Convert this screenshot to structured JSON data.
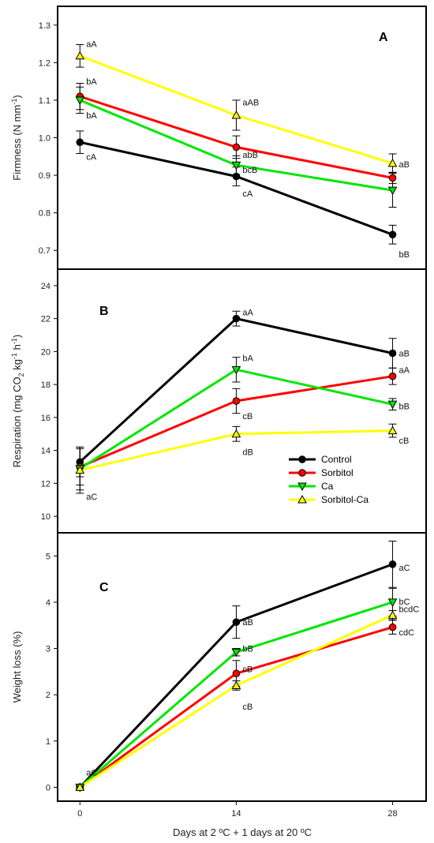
{
  "chart_data": {
    "type": "line",
    "x": [
      0,
      14,
      28
    ],
    "xlabel": "Days at 2 ºC + 1 days at 20 ºC",
    "xticks": [
      "0",
      "14",
      "28"
    ],
    "xlim": [
      -2,
      31
    ],
    "legend": {
      "placement": "inside panel B, lower-right",
      "entries": [
        "Control",
        "Sorbitol",
        "Ca",
        "Sorbitol-Ca"
      ]
    },
    "series_style": [
      {
        "name": "Control",
        "color": "#000000",
        "marker": "circle"
      },
      {
        "name": "Sorbitol",
        "color": "#ff0000",
        "marker": "circle"
      },
      {
        "name": "Ca",
        "color": "#00e600",
        "marker": "triangle-down"
      },
      {
        "name": "Sorbitol-Ca",
        "color": "#ffff00",
        "marker": "triangle-up"
      }
    ],
    "panels": [
      {
        "label": "A",
        "ylabel": "Firmness (N mm",
        "ylabel_sup": "-1",
        "ylabel_end": ")",
        "ylim": [
          0.65,
          1.35
        ],
        "yticks": [
          0.7,
          0.8,
          0.9,
          1.0,
          1.1,
          1.2,
          1.3
        ],
        "ytick_labels": [
          "0.7",
          "0.8",
          "0.9",
          "1.0",
          "1.1",
          "1.2",
          "1.3"
        ],
        "series": [
          {
            "name": "Control",
            "values": [
              0.988,
              0.897,
              0.742
            ],
            "errors": [
              0.03,
              0.025,
              0.025
            ]
          },
          {
            "name": "Sorbitol",
            "values": [
              1.11,
              0.975,
              0.893
            ],
            "errors": [
              0.035,
              0.03,
              0.015
            ]
          },
          {
            "name": "Ca",
            "values": [
              1.1,
              0.927,
              0.86
            ],
            "errors": [
              0.035,
              0.025,
              0.045
            ]
          },
          {
            "name": "Sorbitol-Ca",
            "values": [
              1.218,
              1.06,
              0.932
            ],
            "errors": [
              0.03,
              0.04,
              0.025
            ]
          }
        ],
        "annotations": [
          {
            "text": "aA",
            "x": 0,
            "y": 1.25
          },
          {
            "text": "bA",
            "x": 0,
            "y": 1.15
          },
          {
            "text": "bA",
            "x": 0,
            "y": 1.06
          },
          {
            "text": "cA",
            "x": 0,
            "y": 0.95
          },
          {
            "text": "aAB",
            "x": 14,
            "y": 1.095
          },
          {
            "text": "abB",
            "x": 14,
            "y": 0.955
          },
          {
            "text": "bcB",
            "x": 14,
            "y": 0.915
          },
          {
            "text": "cA",
            "x": 14,
            "y": 0.852
          },
          {
            "text": "aB",
            "x": 28,
            "y": 0.93
          },
          {
            "text": "bB",
            "x": 28,
            "y": 0.69
          }
        ]
      },
      {
        "label": "B",
        "ylabel": "Respiration (mg CO",
        "ylabel_sub": "2",
        "ylabel_mid": " kg",
        "ylabel_sup1": "-1",
        "ylabel_mid2": " h",
        "ylabel_sup2": "-1",
        "ylabel_end": ")",
        "ylim": [
          9,
          25
        ],
        "yticks": [
          10,
          12,
          14,
          16,
          18,
          20,
          22,
          24
        ],
        "ytick_labels": [
          "10",
          "12",
          "14",
          "16",
          "18",
          "20",
          "22",
          "24"
        ],
        "series": [
          {
            "name": "Control",
            "values": [
              13.3,
              22.0,
              19.9
            ],
            "errors": [
              0.9,
              0.45,
              0.9
            ]
          },
          {
            "name": "Sorbitol",
            "values": [
              13.0,
              17.0,
              18.5
            ],
            "errors": [
              1.1,
              0.75,
              0.5
            ]
          },
          {
            "name": "Ca",
            "values": [
              12.9,
              18.9,
              16.8
            ],
            "errors": [
              1.3,
              0.75,
              0.35
            ]
          },
          {
            "name": "Sorbitol-Ca",
            "values": [
              12.8,
              15.0,
              15.2
            ],
            "errors": [
              1.4,
              0.45,
              0.4
            ]
          }
        ],
        "annotations": [
          {
            "text": "aC",
            "x": 0,
            "y": 11.2
          },
          {
            "text": "aA",
            "x": 14,
            "y": 22.4
          },
          {
            "text": "bA",
            "x": 14,
            "y": 19.6
          },
          {
            "text": "cB",
            "x": 14,
            "y": 16.1
          },
          {
            "text": "dB",
            "x": 14,
            "y": 13.9
          },
          {
            "text": "aB",
            "x": 28,
            "y": 19.9
          },
          {
            "text": "aA",
            "x": 28,
            "y": 18.9
          },
          {
            "text": "bB",
            "x": 28,
            "y": 16.7
          },
          {
            "text": "cB",
            "x": 28,
            "y": 14.6
          }
        ]
      },
      {
        "label": "C",
        "ylabel": "Weight loss (%)",
        "ylim": [
          -0.3,
          5.5
        ],
        "yticks": [
          0,
          1,
          2,
          3,
          4,
          5
        ],
        "ytick_labels": [
          "0",
          "1",
          "2",
          "3",
          "4",
          "5"
        ],
        "series": [
          {
            "name": "Control",
            "values": [
              0,
              3.57,
              4.82
            ],
            "errors": [
              0.03,
              0.35,
              0.5
            ]
          },
          {
            "name": "Sorbitol",
            "values": [
              0,
              2.46,
              3.46
            ],
            "errors": [
              0.03,
              0.28,
              0.15
            ]
          },
          {
            "name": "Ca",
            "values": [
              0,
              2.92,
              4.0
            ],
            "errors": [
              0.03,
              0.08,
              0.3
            ]
          },
          {
            "name": "Sorbitol-Ca",
            "values": [
              0,
              2.2,
              3.72
            ],
            "errors": [
              0.03,
              0.1,
              0.1
            ]
          }
        ],
        "annotations": [
          {
            "text": "aC",
            "x": 0,
            "y": 0.32
          },
          {
            "text": "aB",
            "x": 14,
            "y": 3.57
          },
          {
            "text": "bB",
            "x": 14,
            "y": 3.0
          },
          {
            "text": "cB",
            "x": 14,
            "y": 2.56
          },
          {
            "text": "cB",
            "x": 14,
            "y": 1.75
          },
          {
            "text": "aC",
            "x": 28,
            "y": 4.75
          },
          {
            "text": "bC",
            "x": 28,
            "y": 4.02
          },
          {
            "text": "bcdC",
            "x": 28,
            "y": 3.85
          },
          {
            "text": "cdC",
            "x": 28,
            "y": 3.35
          }
        ]
      }
    ]
  }
}
